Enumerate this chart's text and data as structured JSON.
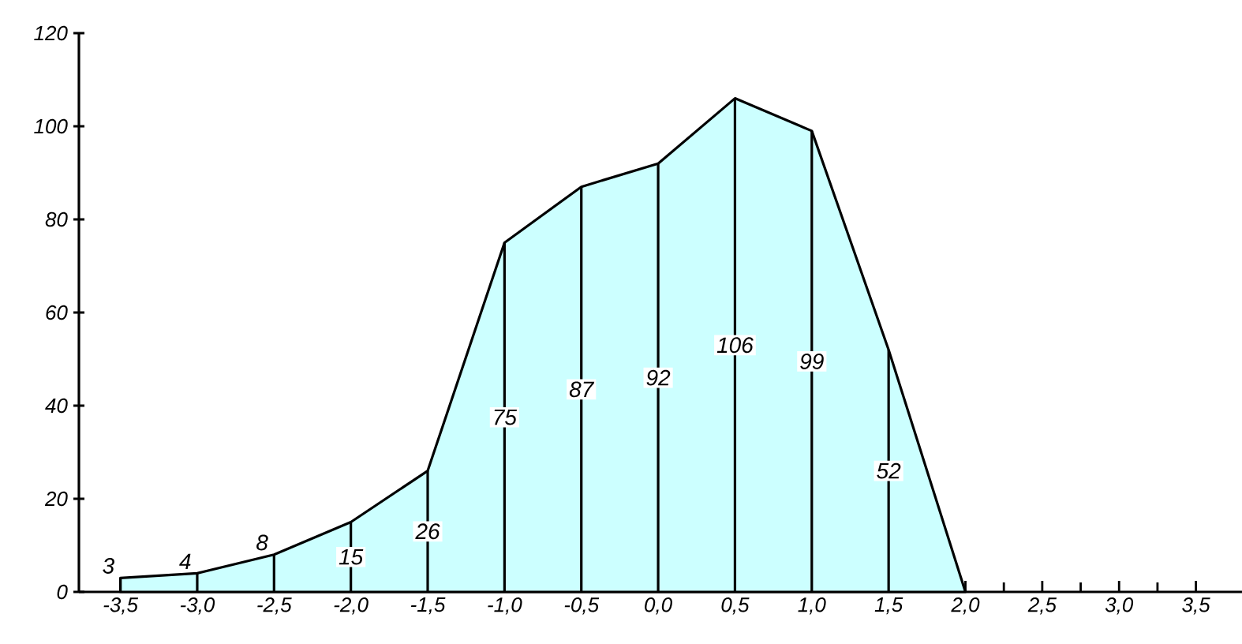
{
  "chart_data": {
    "type": "area",
    "x": [
      -3.5,
      -3.0,
      -2.5,
      -2.0,
      -1.5,
      -1.0,
      -0.5,
      0.0,
      0.5,
      1.0,
      1.5,
      2.0
    ],
    "series": [
      {
        "color": "#ccffff",
        "values": [
          3,
          4,
          8,
          15,
          26,
          75,
          87,
          92,
          106,
          99,
          52,
          0
        ]
      },
      {
        "type": "bar",
        "color": "#000000",
        "values": [
          3,
          4,
          8,
          15,
          26,
          75,
          87,
          92,
          106,
          99,
          52,
          0
        ],
        "value_labels": [
          "3",
          "4",
          "8",
          "15",
          "26",
          "75",
          "87",
          "92",
          "106",
          "99",
          "52",
          null
        ]
      }
    ],
    "xlim": [
      -3.77,
      3.8
    ],
    "ylim": [
      0,
      120
    ],
    "xticks": [
      {
        "value": -3.5,
        "label": "-3,5"
      },
      {
        "value": -3.0,
        "label": "-3,0"
      },
      {
        "value": -2.5,
        "label": "-2,5"
      },
      {
        "value": -2.0,
        "label": "-2,0"
      },
      {
        "value": -1.5,
        "label": "-1,5"
      },
      {
        "value": -1.0,
        "label": "-1,0"
      },
      {
        "value": -0.5,
        "label": "-0,5"
      },
      {
        "value": 0.0,
        "label": "0,0"
      },
      {
        "value": 0.5,
        "label": "0,5"
      },
      {
        "value": 1.0,
        "label": "1,0"
      },
      {
        "value": 1.5,
        "label": "1,5"
      },
      {
        "value": 2.0,
        "label": "2,0"
      },
      {
        "value": 2.5,
        "label": "2,5"
      },
      {
        "value": 3.0,
        "label": "3,0"
      },
      {
        "value": 3.5,
        "label": "3,5"
      }
    ],
    "yticks": [
      0,
      20,
      40,
      60,
      80,
      100,
      120
    ]
  }
}
